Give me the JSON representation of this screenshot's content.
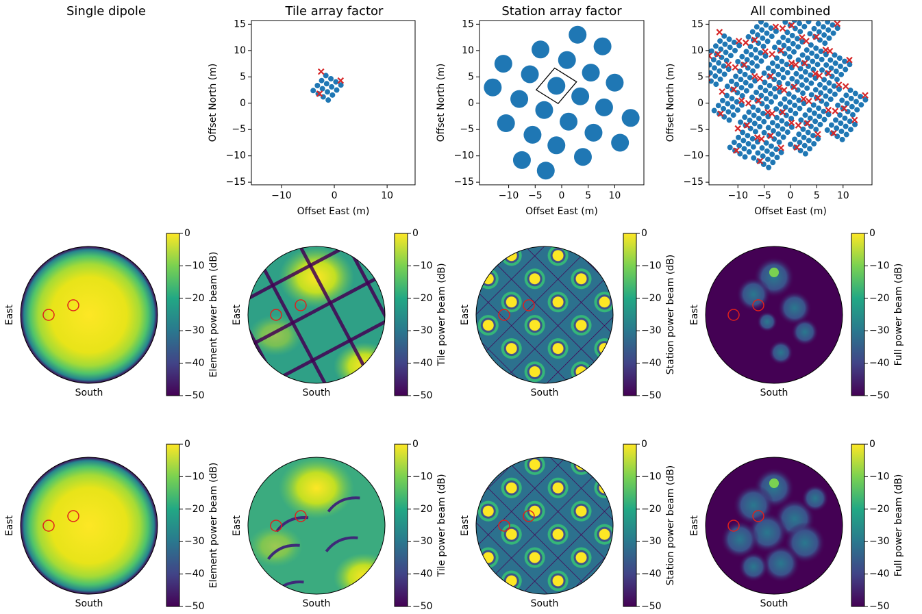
{
  "chart_data": [
    {
      "type": "blank",
      "title": "Single dipole"
    },
    {
      "type": "scatter",
      "title": "Tile array factor",
      "x_label": "Offset East (m)",
      "y_label": "Offset North (m)",
      "xlim": [
        -15.7,
        15.3
      ],
      "ylim": [
        -15.5,
        15.7
      ],
      "xticks": [
        {
          "value": -10,
          "label": "−10"
        },
        0,
        10
      ],
      "yticks": [
        {
          "value": -15,
          "label": "−15"
        },
        {
          "value": -10,
          "label": "−10"
        },
        {
          "value": -5,
          "label": "−5"
        },
        0,
        5,
        10,
        15
      ],
      "series": [
        {
          "color": "#1f77b4",
          "marker": "dot",
          "x": [
            -4,
            -3.2,
            -2.4,
            -1.6,
            -3.05,
            -2.25,
            -1.45,
            -0.65,
            -2.1,
            -1.3,
            -0.5,
            0.3,
            -1.15,
            -0.35,
            0.45,
            1.25
          ],
          "y": [
            2.4,
            3.35,
            4.3,
            5.25,
            1.8,
            2.75,
            3.7,
            4.65,
            1.2,
            2.15,
            3.1,
            4.05,
            0.6,
            1.55,
            2.5,
            3.45
          ]
        },
        {
          "color": "#d62728",
          "marker": "cross",
          "x": [
            -2.5,
            1.2,
            -2.8
          ],
          "y": [
            6.0,
            4.3,
            1.8
          ]
        }
      ]
    },
    {
      "type": "scatter",
      "title": "Station array factor",
      "x_label": "Offset East (m)",
      "y_label": "Offset North (m)",
      "xlim": [
        -15.5,
        15.5
      ],
      "ylim": [
        -15.5,
        15.7
      ],
      "xticks": [
        {
          "value": -10,
          "label": "−10"
        },
        {
          "value": -5,
          "label": "−5"
        },
        0,
        5,
        10
      ],
      "yticks": [
        {
          "value": -15,
          "label": "−15"
        },
        {
          "value": -10,
          "label": "−10"
        },
        {
          "value": -5,
          "label": "−5"
        },
        0,
        5,
        10,
        15
      ],
      "tile_outline": true,
      "series": [
        {
          "color": "#1f77b4",
          "marker": "disc",
          "x": [
            3,
            7.7,
            -4,
            1,
            -11,
            -6,
            5.5,
            -13,
            -1,
            10,
            -8,
            3.5,
            -3.3,
            8,
            13,
            -10.5,
            1.3,
            6,
            -5.5,
            11,
            -1,
            4,
            -7.5,
            -3
          ],
          "y": [
            13,
            10.8,
            10.2,
            8.2,
            7.5,
            5.5,
            5.8,
            3,
            3.3,
            3.9,
            0.8,
            1.3,
            -1.3,
            -0.8,
            -2.8,
            -3.8,
            -3.5,
            -5.6,
            -6,
            -7.5,
            -8,
            -10.2,
            -10.8,
            -12.8
          ]
        }
      ]
    },
    {
      "type": "combined",
      "title": "All combined",
      "x_label": "Offset East (m)",
      "y_label": "Offset North (m)",
      "xlim": [
        -15.5,
        15.5
      ],
      "ylim": [
        -15.5,
        15.7
      ],
      "xticks": [
        {
          "value": -10,
          "label": "−10"
        },
        {
          "value": -5,
          "label": "−5"
        },
        0,
        5,
        10
      ],
      "yticks": [
        {
          "value": -15,
          "label": "−15"
        },
        {
          "value": -10,
          "label": "−10"
        },
        {
          "value": -5,
          "label": "−5"
        },
        0,
        5,
        10,
        15
      ]
    },
    {
      "type": "beam",
      "pattern": "element",
      "x_label": "South",
      "y_label": "East",
      "colorbar_label": "Element power beam (dB)",
      "clim": [
        -50,
        0
      ],
      "cticks": [
        0,
        {
          "value": -10,
          "label": "−10"
        },
        {
          "value": -20,
          "label": "−20"
        },
        {
          "value": -30,
          "label": "−30"
        },
        {
          "value": -40,
          "label": "−40"
        },
        {
          "value": -50,
          "label": "−50"
        }
      ]
    },
    {
      "type": "beam",
      "pattern": "tile",
      "x_label": "South",
      "y_label": "East",
      "colorbar_label": "Tile power beam (dB)",
      "clim": [
        -50,
        0
      ],
      "cticks": [
        0,
        {
          "value": -10,
          "label": "−10"
        },
        {
          "value": -20,
          "label": "−20"
        },
        {
          "value": -30,
          "label": "−30"
        },
        {
          "value": -40,
          "label": "−40"
        },
        {
          "value": -50,
          "label": "−50"
        }
      ]
    },
    {
      "type": "beam",
      "pattern": "station",
      "x_label": "South",
      "y_label": "East",
      "colorbar_label": "Station power beam (dB)",
      "clim": [
        -50,
        0
      ],
      "cticks": [
        0,
        {
          "value": -10,
          "label": "−10"
        },
        {
          "value": -20,
          "label": "−20"
        },
        {
          "value": -30,
          "label": "−30"
        },
        {
          "value": -40,
          "label": "−40"
        },
        {
          "value": -50,
          "label": "−50"
        }
      ]
    },
    {
      "type": "beam",
      "pattern": "full",
      "x_label": "South",
      "y_label": "East",
      "colorbar_label": "Full power beam (dB)",
      "clim": [
        -50,
        0
      ],
      "cticks": [
        0,
        {
          "value": -10,
          "label": "−10"
        },
        {
          "value": -20,
          "label": "−20"
        },
        {
          "value": -30,
          "label": "−30"
        },
        {
          "value": -40,
          "label": "−40"
        },
        {
          "value": -50,
          "label": "−50"
        }
      ]
    },
    {
      "type": "beam",
      "pattern": "element",
      "x_label": "South",
      "y_label": "East",
      "colorbar_label": "Element power beam (dB)",
      "clim": [
        -50,
        0
      ],
      "cticks": [
        0,
        {
          "value": -10,
          "label": "−10"
        },
        {
          "value": -20,
          "label": "−20"
        },
        {
          "value": -30,
          "label": "−30"
        },
        {
          "value": -40,
          "label": "−40"
        },
        {
          "value": -50,
          "label": "−50"
        }
      ]
    },
    {
      "type": "beam",
      "pattern": "tile-smooth",
      "x_label": "South",
      "y_label": "East",
      "colorbar_label": "Tile power beam (dB)",
      "clim": [
        -50,
        0
      ],
      "cticks": [
        0,
        {
          "value": -10,
          "label": "−10"
        },
        {
          "value": -20,
          "label": "−20"
        },
        {
          "value": -30,
          "label": "−30"
        },
        {
          "value": -40,
          "label": "−40"
        },
        {
          "value": -50,
          "label": "−50"
        }
      ]
    },
    {
      "type": "beam",
      "pattern": "station",
      "x_label": "South",
      "y_label": "East",
      "colorbar_label": "Station power beam (dB)",
      "clim": [
        -50,
        0
      ],
      "cticks": [
        0,
        {
          "value": -10,
          "label": "−10"
        },
        {
          "value": -20,
          "label": "−20"
        },
        {
          "value": -30,
          "label": "−30"
        },
        {
          "value": -40,
          "label": "−40"
        },
        {
          "value": -50,
          "label": "−50"
        }
      ]
    },
    {
      "type": "beam",
      "pattern": "full-noisy",
      "x_label": "South",
      "y_label": "East",
      "colorbar_label": "Full power beam (dB)",
      "clim": [
        -50,
        0
      ],
      "cticks": [
        0,
        {
          "value": -10,
          "label": "−10"
        },
        {
          "value": -20,
          "label": "−20"
        },
        {
          "value": -30,
          "label": "−30"
        },
        {
          "value": -40,
          "label": "−40"
        },
        {
          "value": -50,
          "label": "−50"
        }
      ]
    }
  ]
}
